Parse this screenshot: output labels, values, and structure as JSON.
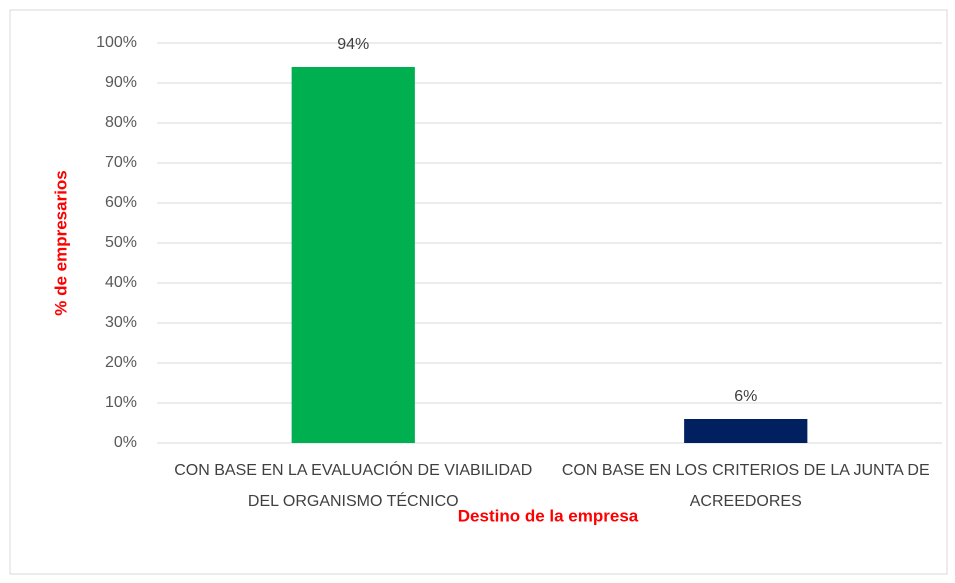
{
  "chart_data": {
    "type": "bar",
    "categories": [
      "CON BASE EN LA EVALUACIÓN DE VIABILIDAD DEL ORGANISMO TÉCNICO",
      "CON BASE EN LOS CRITERIOS DE LA JUNTA DE ACREEDORES"
    ],
    "values": [
      94,
      6
    ],
    "value_labels": [
      "94%",
      "6%"
    ],
    "colors": [
      "#00b050",
      "#002060"
    ],
    "ylabel": "% de empresarios",
    "xlabel": "Destino de la empresa",
    "ylim": [
      0,
      100
    ],
    "yticks": [
      {
        "value": 0,
        "label": "0%"
      },
      {
        "value": 10,
        "label": "10%"
      },
      {
        "value": 20,
        "label": "20%"
      },
      {
        "value": 30,
        "label": "30%"
      },
      {
        "value": 40,
        "label": "40%"
      },
      {
        "value": 50,
        "label": "50%"
      },
      {
        "value": 60,
        "label": "60%"
      },
      {
        "value": 70,
        "label": "70%"
      },
      {
        "value": 80,
        "label": "80%"
      },
      {
        "value": 90,
        "label": "90%"
      },
      {
        "value": 100,
        "label": "100%"
      }
    ],
    "grid": true
  }
}
